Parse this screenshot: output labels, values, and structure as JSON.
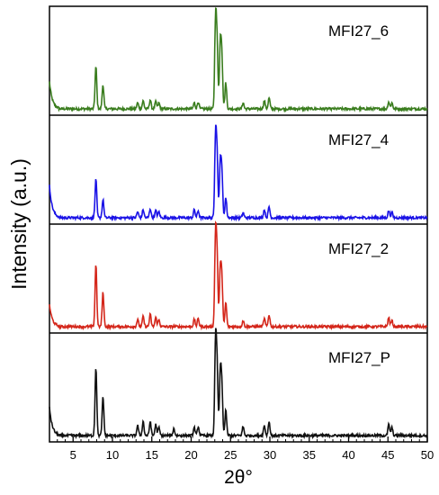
{
  "chart_data": {
    "type": "line",
    "xlabel": "2θ°",
    "ylabel": "Intensity (a.u.)",
    "xlim": [
      2,
      50
    ],
    "xticks": [
      5,
      10,
      15,
      20,
      25,
      30,
      35,
      40,
      45,
      50
    ],
    "stacked": true,
    "y_ticks_shown": false,
    "panels": [
      {
        "label": "MFI27_6",
        "color": "#3a7d1e",
        "peaks": [
          {
            "x": 2.3,
            "y": 0.27
          },
          {
            "x": 7.9,
            "y": 0.42
          },
          {
            "x": 8.8,
            "y": 0.24
          },
          {
            "x": 13.2,
            "y": 0.06
          },
          {
            "x": 13.9,
            "y": 0.08
          },
          {
            "x": 14.8,
            "y": 0.09
          },
          {
            "x": 15.5,
            "y": 0.07
          },
          {
            "x": 15.9,
            "y": 0.06
          },
          {
            "x": 20.4,
            "y": 0.06
          },
          {
            "x": 20.9,
            "y": 0.07
          },
          {
            "x": 23.1,
            "y": 0.88
          },
          {
            "x": 23.3,
            "y": 0.58
          },
          {
            "x": 23.7,
            "y": 0.62
          },
          {
            "x": 23.9,
            "y": 0.5
          },
          {
            "x": 24.4,
            "y": 0.26
          },
          {
            "x": 26.6,
            "y": 0.06
          },
          {
            "x": 29.3,
            "y": 0.08
          },
          {
            "x": 29.9,
            "y": 0.11
          },
          {
            "x": 45.1,
            "y": 0.07
          },
          {
            "x": 45.5,
            "y": 0.06
          }
        ]
      },
      {
        "label": "MFI27_4",
        "color": "#1a12e6",
        "peaks": [
          {
            "x": 2.3,
            "y": 0.32
          },
          {
            "x": 7.9,
            "y": 0.38
          },
          {
            "x": 8.8,
            "y": 0.18
          },
          {
            "x": 13.2,
            "y": 0.06
          },
          {
            "x": 13.9,
            "y": 0.08
          },
          {
            "x": 14.8,
            "y": 0.09
          },
          {
            "x": 15.5,
            "y": 0.07
          },
          {
            "x": 15.9,
            "y": 0.06
          },
          {
            "x": 20.4,
            "y": 0.08
          },
          {
            "x": 20.9,
            "y": 0.07
          },
          {
            "x": 23.1,
            "y": 0.81
          },
          {
            "x": 23.3,
            "y": 0.55
          },
          {
            "x": 23.7,
            "y": 0.52
          },
          {
            "x": 23.9,
            "y": 0.43
          },
          {
            "x": 24.4,
            "y": 0.2
          },
          {
            "x": 26.6,
            "y": 0.05
          },
          {
            "x": 29.3,
            "y": 0.08
          },
          {
            "x": 29.9,
            "y": 0.11
          },
          {
            "x": 45.1,
            "y": 0.07
          },
          {
            "x": 45.5,
            "y": 0.05
          }
        ]
      },
      {
        "label": "MFI27_2",
        "color": "#d4261a",
        "peaks": [
          {
            "x": 2.3,
            "y": 0.22
          },
          {
            "x": 7.9,
            "y": 0.62
          },
          {
            "x": 8.8,
            "y": 0.34
          },
          {
            "x": 13.2,
            "y": 0.07
          },
          {
            "x": 13.9,
            "y": 0.1
          },
          {
            "x": 14.8,
            "y": 0.12
          },
          {
            "x": 15.5,
            "y": 0.09
          },
          {
            "x": 15.9,
            "y": 0.07
          },
          {
            "x": 20.4,
            "y": 0.07
          },
          {
            "x": 20.9,
            "y": 0.08
          },
          {
            "x": 23.1,
            "y": 0.9
          },
          {
            "x": 23.3,
            "y": 0.62
          },
          {
            "x": 23.7,
            "y": 0.55
          },
          {
            "x": 23.9,
            "y": 0.45
          },
          {
            "x": 24.4,
            "y": 0.24
          },
          {
            "x": 26.6,
            "y": 0.06
          },
          {
            "x": 29.3,
            "y": 0.08
          },
          {
            "x": 29.9,
            "y": 0.12
          },
          {
            "x": 45.1,
            "y": 0.09
          },
          {
            "x": 45.5,
            "y": 0.06
          }
        ]
      },
      {
        "label": "MFI27_P",
        "color": "#111111",
        "peaks": [
          {
            "x": 2.3,
            "y": 0.28
          },
          {
            "x": 7.9,
            "y": 0.68
          },
          {
            "x": 8.8,
            "y": 0.38
          },
          {
            "x": 13.2,
            "y": 0.1
          },
          {
            "x": 13.9,
            "y": 0.14
          },
          {
            "x": 14.8,
            "y": 0.14
          },
          {
            "x": 15.5,
            "y": 0.11
          },
          {
            "x": 15.9,
            "y": 0.08
          },
          {
            "x": 17.8,
            "y": 0.07
          },
          {
            "x": 20.4,
            "y": 0.08
          },
          {
            "x": 20.9,
            "y": 0.09
          },
          {
            "x": 23.1,
            "y": 0.92
          },
          {
            "x": 23.3,
            "y": 0.62
          },
          {
            "x": 23.7,
            "y": 0.6
          },
          {
            "x": 23.9,
            "y": 0.47
          },
          {
            "x": 24.4,
            "y": 0.25
          },
          {
            "x": 26.6,
            "y": 0.09
          },
          {
            "x": 29.3,
            "y": 0.1
          },
          {
            "x": 29.9,
            "y": 0.14
          },
          {
            "x": 45.1,
            "y": 0.11
          },
          {
            "x": 45.5,
            "y": 0.08
          }
        ]
      }
    ]
  }
}
